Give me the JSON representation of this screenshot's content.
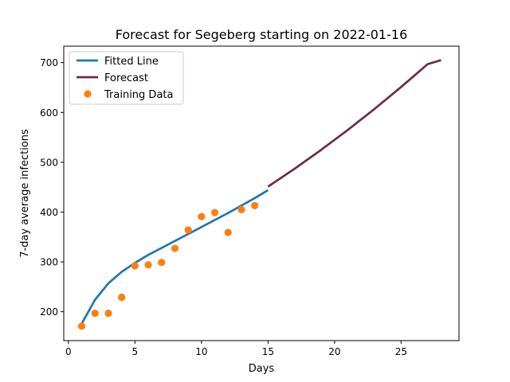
{
  "chart_data": {
    "type": "line",
    "title": "Forecast for Segeberg starting on 2022-01-16",
    "xlabel": "Days",
    "ylabel": "7-day average infections",
    "xlim": [
      -0.35,
      29.35
    ],
    "ylim": [
      142,
      733
    ],
    "xticks": [
      0,
      5,
      10,
      15,
      20,
      25
    ],
    "yticks": [
      200,
      300,
      400,
      500,
      600,
      700
    ],
    "grid": false,
    "legend_position": "top-left",
    "series": [
      {
        "name": "Fitted Line",
        "kind": "line",
        "color": "#1f77b4",
        "x": [
          1,
          2,
          3,
          4,
          5,
          6,
          7,
          8,
          9,
          10,
          11,
          12,
          13,
          14,
          15
        ],
        "y": [
          176,
          224,
          257,
          280,
          298,
          314,
          328,
          342,
          356,
          370,
          384,
          398,
          413,
          428,
          444
        ]
      },
      {
        "name": "Forecast",
        "kind": "line",
        "color": "#6b2c48",
        "x": [
          15,
          16,
          17,
          18,
          19,
          20,
          21,
          22,
          23,
          24,
          25,
          26,
          27,
          28
        ],
        "y": [
          451,
          469,
          487,
          506,
          525,
          545,
          565,
          586,
          607,
          629,
          651,
          674,
          697,
          705
        ]
      },
      {
        "name": "Training Data",
        "kind": "scatter",
        "color": "#ff7f0e",
        "x": [
          1,
          2,
          3,
          4,
          5,
          6,
          7,
          8,
          9,
          10,
          11,
          12,
          13,
          14
        ],
        "y": [
          171,
          197,
          197,
          229,
          292,
          294,
          299,
          327,
          364,
          391,
          399,
          359,
          405,
          413
        ]
      }
    ]
  }
}
